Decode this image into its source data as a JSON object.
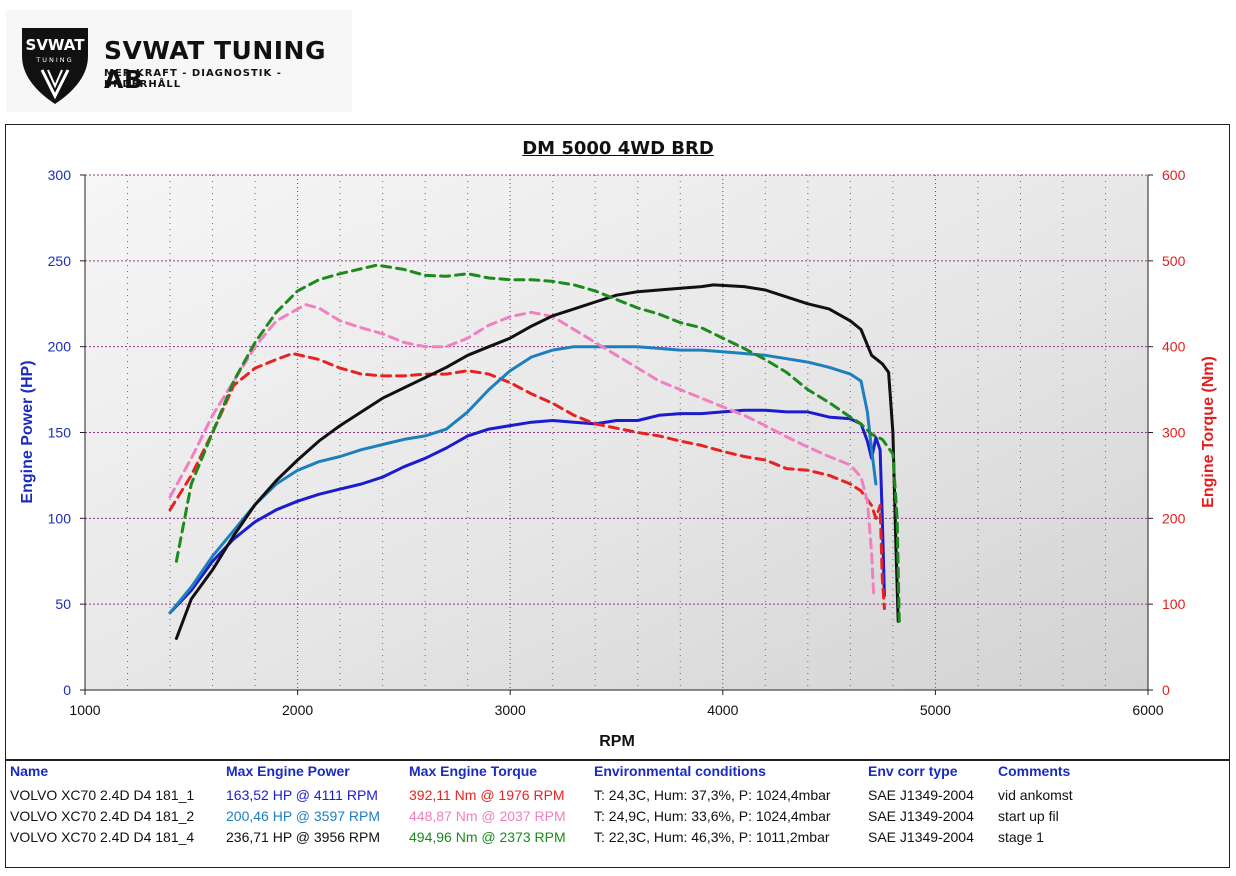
{
  "header": {
    "brand": "SVWAT TUNING AB",
    "logo_text": "SVWAT",
    "logo_subtext": "TUNING",
    "tagline": "MER KRAFT - DIAGNOSTIK - UNDERHÅLL"
  },
  "chart_data": {
    "type": "line",
    "title": "DM 5000 4WD BRD",
    "xlabel": "RPM",
    "ylabel_left": "Engine Power (HP)",
    "ylabel_right": "Engine Torque (Nm)",
    "xlim": [
      1000,
      6000
    ],
    "ylim_left": [
      0,
      300
    ],
    "ylim_right": [
      0,
      600
    ],
    "x_ticks": [
      1000,
      2000,
      3000,
      4000,
      5000,
      6000
    ],
    "y_ticks_left": [
      0,
      50,
      100,
      150,
      200,
      250,
      300
    ],
    "y_ticks_right": [
      0,
      100,
      200,
      300,
      400,
      500,
      600
    ],
    "grid": true,
    "series": [
      {
        "run": "181_1",
        "quantity": "power",
        "axis": "left",
        "color": "#1c1ccc",
        "dash": false,
        "x": [
          1400,
          1500,
          1600,
          1700,
          1800,
          1900,
          2000,
          2100,
          2200,
          2300,
          2400,
          2500,
          2600,
          2700,
          2800,
          2900,
          3000,
          3100,
          3200,
          3300,
          3400,
          3500,
          3600,
          3700,
          3800,
          3900,
          4000,
          4100,
          4200,
          4300,
          4400,
          4500,
          4600,
          4650,
          4680,
          4700,
          4720,
          4740,
          4750,
          4760
        ],
        "y": [
          45,
          58,
          75,
          88,
          98,
          105,
          110,
          114,
          117,
          120,
          124,
          130,
          135,
          141,
          148,
          152,
          154,
          156,
          157,
          156,
          155,
          157,
          157,
          160,
          161,
          161,
          162,
          163,
          163,
          162,
          162,
          159,
          158,
          155,
          145,
          135,
          147,
          140,
          100,
          55
        ]
      },
      {
        "run": "181_1",
        "quantity": "torque",
        "axis": "right",
        "color": "#e82222",
        "dash": true,
        "x": [
          1400,
          1500,
          1600,
          1700,
          1800,
          1900,
          1976,
          2100,
          2200,
          2300,
          2400,
          2500,
          2600,
          2700,
          2800,
          2900,
          3000,
          3100,
          3200,
          3300,
          3400,
          3500,
          3600,
          3700,
          3800,
          3900,
          4000,
          4100,
          4200,
          4300,
          4400,
          4500,
          4600,
          4650,
          4700,
          4720,
          4740,
          4750,
          4760
        ],
        "y": [
          210,
          250,
          300,
          355,
          375,
          385,
          392,
          385,
          375,
          368,
          366,
          366,
          368,
          368,
          372,
          368,
          358,
          345,
          334,
          320,
          310,
          305,
          300,
          296,
          290,
          285,
          278,
          272,
          268,
          258,
          256,
          250,
          240,
          232,
          215,
          200,
          215,
          130,
          95
        ]
      },
      {
        "run": "181_2",
        "quantity": "power",
        "axis": "left",
        "color": "#1e7fbf",
        "dash": false,
        "x": [
          1400,
          1500,
          1600,
          1700,
          1800,
          1900,
          2000,
          2100,
          2200,
          2300,
          2400,
          2500,
          2600,
          2700,
          2800,
          2900,
          3000,
          3100,
          3200,
          3300,
          3400,
          3500,
          3597,
          3700,
          3800,
          3900,
          4000,
          4100,
          4200,
          4300,
          4400,
          4500,
          4600,
          4650,
          4680,
          4700,
          4720
        ],
        "y": [
          45,
          60,
          78,
          93,
          108,
          120,
          128,
          133,
          136,
          140,
          143,
          146,
          148,
          152,
          162,
          175,
          186,
          194,
          198,
          200,
          200,
          200,
          200,
          199,
          198,
          198,
          197,
          196,
          195,
          193,
          191,
          188,
          184,
          180,
          162,
          140,
          120
        ]
      },
      {
        "run": "181_2",
        "quantity": "torque",
        "axis": "right",
        "color": "#f080c0",
        "dash": true,
        "x": [
          1400,
          1500,
          1600,
          1700,
          1800,
          1900,
          2037,
          2100,
          2200,
          2300,
          2400,
          2500,
          2600,
          2700,
          2800,
          2900,
          3000,
          3100,
          3200,
          3300,
          3400,
          3500,
          3600,
          3700,
          3800,
          3900,
          4000,
          4100,
          4200,
          4300,
          4400,
          4500,
          4600,
          4650,
          4680,
          4700,
          4710
        ],
        "y": [
          225,
          270,
          320,
          360,
          400,
          430,
          449,
          445,
          430,
          422,
          415,
          405,
          400,
          400,
          410,
          425,
          435,
          440,
          435,
          420,
          405,
          390,
          375,
          360,
          350,
          340,
          330,
          320,
          308,
          295,
          283,
          272,
          262,
          248,
          220,
          160,
          110
        ]
      },
      {
        "run": "181_4",
        "quantity": "power",
        "axis": "left",
        "color": "#111111",
        "dash": false,
        "x": [
          1430,
          1500,
          1600,
          1700,
          1800,
          1900,
          2000,
          2100,
          2200,
          2300,
          2400,
          2500,
          2600,
          2700,
          2800,
          2900,
          3000,
          3100,
          3200,
          3300,
          3400,
          3500,
          3600,
          3700,
          3800,
          3900,
          3956,
          4100,
          4200,
          4300,
          4400,
          4500,
          4600,
          4650,
          4700,
          4750,
          4780,
          4800,
          4815,
          4825
        ],
        "y": [
          30,
          53,
          70,
          90,
          108,
          122,
          134,
          145,
          154,
          162,
          170,
          176,
          182,
          188,
          195,
          200,
          205,
          212,
          218,
          222,
          226,
          230,
          232,
          233,
          234,
          235,
          236,
          235,
          233,
          229,
          225,
          222,
          215,
          210,
          195,
          190,
          185,
          150,
          80,
          40
        ]
      },
      {
        "run": "181_4",
        "quantity": "torque",
        "axis": "right",
        "color": "#1c8a1c",
        "dash": true,
        "x": [
          1430,
          1500,
          1600,
          1700,
          1800,
          1900,
          2000,
          2100,
          2200,
          2373,
          2500,
          2600,
          2700,
          2800,
          2900,
          3000,
          3100,
          3200,
          3300,
          3400,
          3500,
          3600,
          3700,
          3800,
          3900,
          4000,
          4100,
          4200,
          4300,
          4400,
          4500,
          4600,
          4650,
          4700,
          4750,
          4800,
          4820,
          4830
        ],
        "y": [
          150,
          240,
          300,
          360,
          405,
          440,
          465,
          478,
          485,
          495,
          490,
          483,
          482,
          485,
          480,
          478,
          478,
          476,
          472,
          465,
          455,
          445,
          438,
          428,
          422,
          410,
          398,
          385,
          370,
          350,
          335,
          318,
          310,
          298,
          292,
          275,
          200,
          80
        ]
      }
    ]
  },
  "legend": {
    "headers": [
      "Name",
      "Max Engine Power",
      "Max Engine Torque",
      "Environmental conditions",
      "Env corr type",
      "Comments"
    ],
    "rows": [
      {
        "name": "VOLVO XC70 2.4D D4 181_1",
        "power": "163,52 HP @ 4111 RPM",
        "torque": "392,11 Nm @ 1976 RPM",
        "env": "T: 24,3C, Hum: 37,3%, P: 1024,4mbar",
        "corr": "SAE J1349-2004",
        "comment": "vid ankomst",
        "power_color": "#1c1ccc",
        "torque_color": "#e82222"
      },
      {
        "name": "VOLVO XC70 2.4D D4 181_2",
        "power": "200,46 HP @ 3597 RPM",
        "torque": "448,87 Nm @ 2037 RPM",
        "env": "T: 24,9C, Hum: 33,6%, P: 1024,4mbar",
        "corr": "SAE J1349-2004",
        "comment": "start up fil",
        "power_color": "#1e7fbf",
        "torque_color": "#f080c0"
      },
      {
        "name": "VOLVO XC70 2.4D D4 181_4",
        "power": "236,71 HP @ 3956 RPM",
        "torque": "494,96 Nm @ 2373 RPM",
        "env": "T: 22,3C, Hum: 46,3%, P: 1011,2mbar",
        "corr": "SAE J1349-2004",
        "comment": "stage 1",
        "power_color": "#111111",
        "torque_color": "#1c8a1c"
      }
    ]
  }
}
